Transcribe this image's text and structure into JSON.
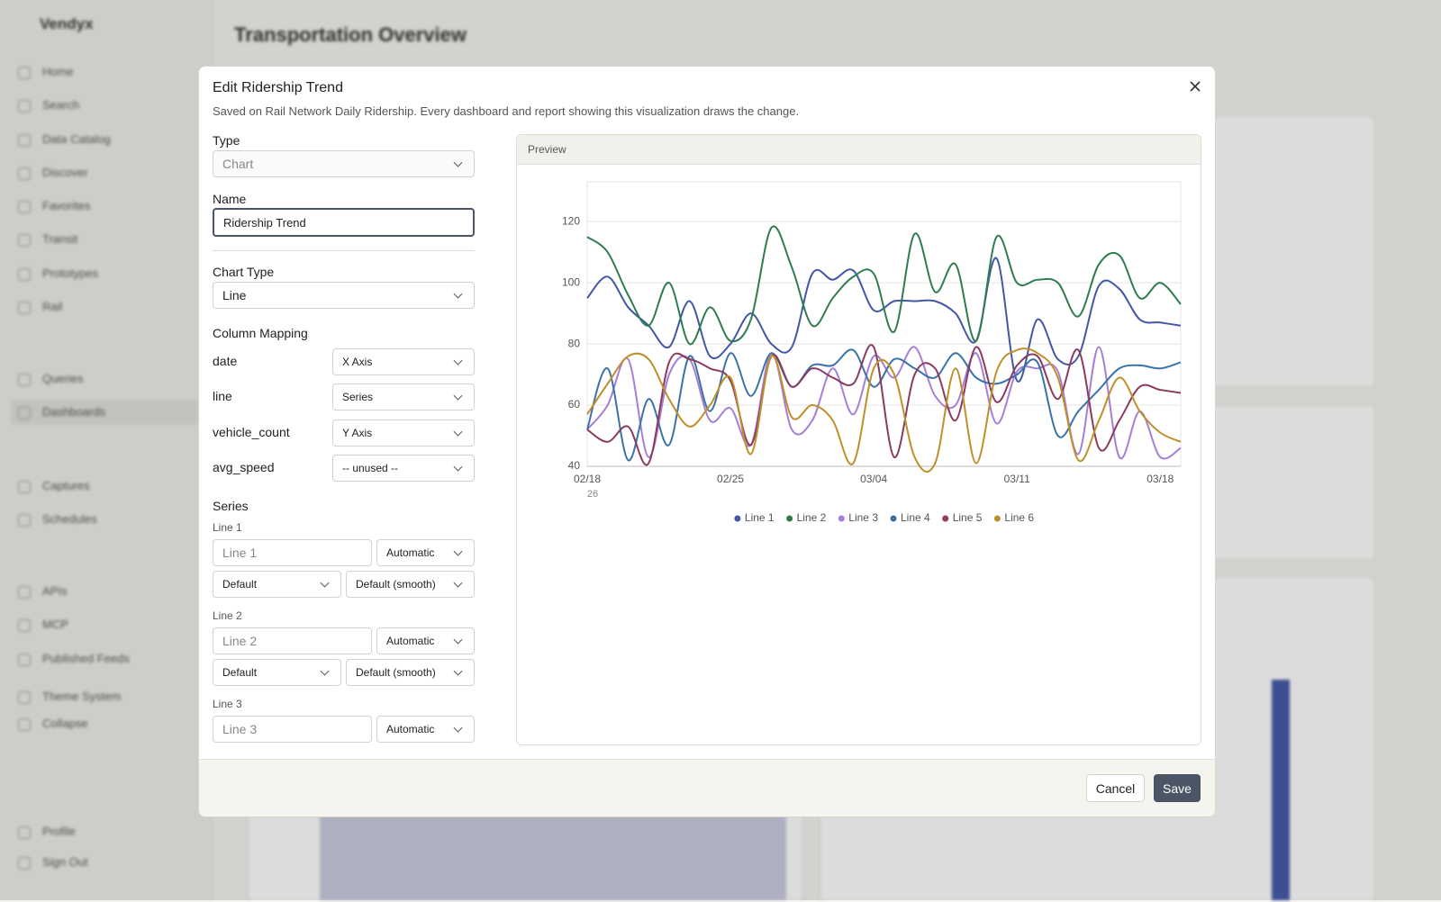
{
  "app": {
    "brand": "Vendyx",
    "title": "Transportation Overview",
    "nav": [
      "Home",
      "Search",
      "Data Catalog",
      "Discover",
      "Favorites",
      "Transit",
      "Prototypes",
      "Rail",
      "Queries",
      "Dashboards",
      "Captures",
      "Schedules",
      "APIs",
      "MCP",
      "Published Feeds",
      "Theme System",
      "Collapse",
      "Profile",
      "Sign Out"
    ]
  },
  "dialog": {
    "title": "Edit Ridership Trend",
    "subtitle": "Saved on Rail Network Daily Ridership. Every dashboard and report showing this visualization draws the change.",
    "type_label": "Type",
    "type_value": "Chart",
    "name_label": "Name",
    "name_value": "Ridership Trend",
    "chart_type_label": "Chart Type",
    "chart_type_value": "Line",
    "mapping_label": "Column Mapping",
    "mapping": [
      {
        "column": "date",
        "role": "X Axis"
      },
      {
        "column": "line",
        "role": "Series"
      },
      {
        "column": "vehicle_count",
        "role": "Y Axis"
      },
      {
        "column": "avg_speed",
        "role": "-- unused --"
      }
    ],
    "series_label": "Series",
    "series": [
      {
        "label": "Line 1",
        "placeholder": "Line 1",
        "color": "Automatic",
        "style": "Default",
        "curve": "Default (smooth)"
      },
      {
        "label": "Line 2",
        "placeholder": "Line 2",
        "color": "Automatic",
        "style": "Default",
        "curve": "Default (smooth)"
      },
      {
        "label": "Line 3",
        "placeholder": "Line 3",
        "color": "Automatic"
      }
    ],
    "preview_label": "Preview",
    "cancel": "Cancel",
    "save": "Save"
  },
  "chart_data": {
    "type": "line",
    "x_sublabel": "26",
    "categories": [
      "02/18",
      null,
      null,
      null,
      null,
      null,
      null,
      "02/25",
      null,
      null,
      null,
      null,
      null,
      null,
      "03/04",
      null,
      null,
      null,
      null,
      null,
      null,
      "03/11",
      null,
      null,
      null,
      null,
      null,
      null,
      "03/18",
      null
    ],
    "ylim": [
      40,
      133
    ],
    "yticks": [
      40,
      60,
      80,
      100,
      120
    ],
    "grid": true,
    "legend": "bottom",
    "series": [
      {
        "name": "Line 1",
        "color": "#4257a7",
        "values": [
          95,
          102,
          92,
          86,
          79,
          94,
          76,
          80,
          90,
          80,
          79,
          103,
          101,
          104,
          91,
          94,
          94,
          94,
          90,
          81,
          108,
          68,
          88,
          75,
          76,
          99,
          98,
          88,
          87,
          86
        ]
      },
      {
        "name": "Line 2",
        "color": "#2e7d4f",
        "values": [
          115,
          110,
          96,
          86,
          100,
          80,
          92,
          81,
          88,
          118,
          105,
          86,
          95,
          102,
          103,
          84,
          116,
          97,
          106,
          81,
          115,
          100,
          101,
          100,
          89,
          106,
          109,
          95,
          100,
          93
        ]
      },
      {
        "name": "Line 3",
        "color": "#a57fd6",
        "values": [
          52,
          60,
          75,
          43,
          70,
          75,
          55,
          59,
          47,
          77,
          52,
          55,
          72,
          57,
          76,
          69,
          79,
          63,
          60,
          77,
          54,
          71,
          72,
          71,
          44,
          79,
          43,
          58,
          43,
          46
        ]
      },
      {
        "name": "Line 4",
        "color": "#3a73a8",
        "values": [
          52,
          72,
          42,
          62,
          47,
          76,
          58,
          77,
          63,
          77,
          66,
          73,
          73,
          78,
          66,
          75,
          72,
          69,
          77,
          69,
          67,
          70,
          74,
          50,
          58,
          65,
          72,
          73,
          72,
          74
        ]
      },
      {
        "name": "Line 5",
        "color": "#8c3a5e",
        "values": [
          52,
          48,
          53,
          41,
          74,
          75,
          72,
          68,
          47,
          76,
          66,
          72,
          69,
          67,
          79,
          43,
          70,
          72,
          55,
          79,
          61,
          73,
          76,
          62,
          78,
          46,
          55,
          66,
          65,
          64
        ]
      },
      {
        "name": "Line 6",
        "color": "#c08f2a",
        "values": [
          57,
          67,
          76,
          75,
          62,
          53,
          60,
          69,
          44,
          76,
          56,
          60,
          55,
          41,
          72,
          70,
          43,
          41,
          72,
          41,
          71,
          78,
          77,
          69,
          42,
          55,
          69,
          58,
          51,
          48
        ]
      }
    ]
  }
}
